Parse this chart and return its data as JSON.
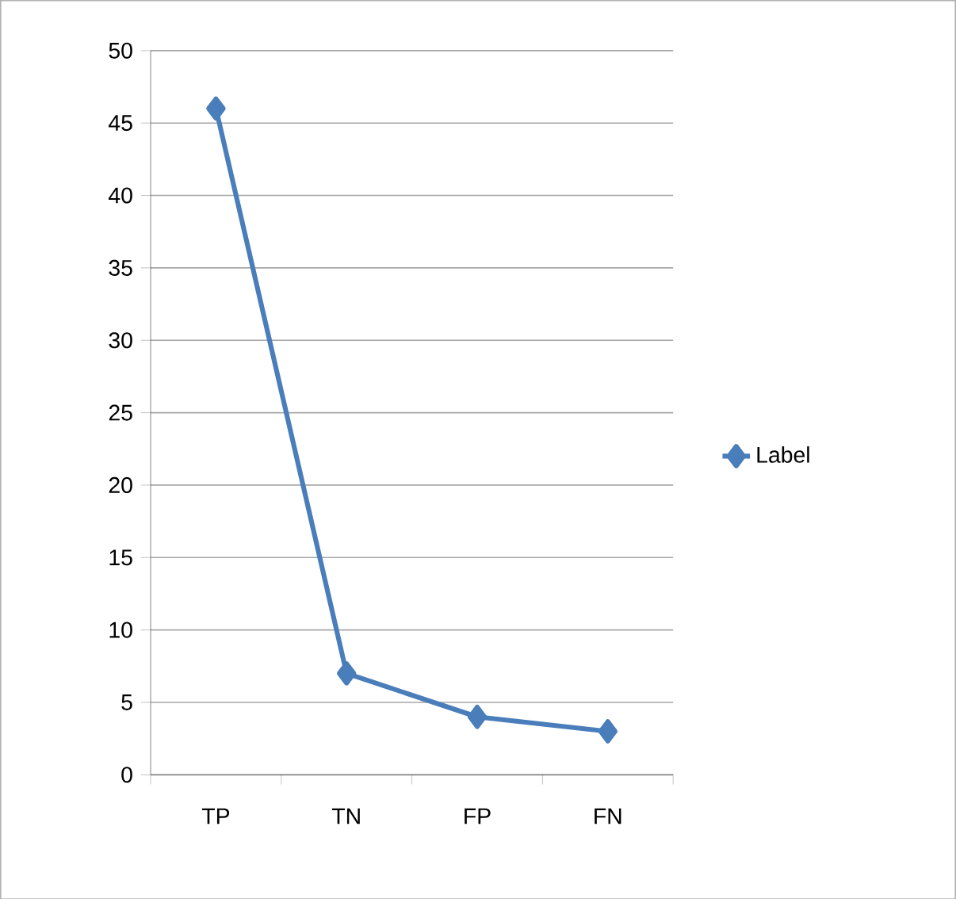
{
  "chart_data": {
    "type": "line",
    "categories": [
      "TP",
      "TN",
      "FP",
      "FN"
    ],
    "series": [
      {
        "name": "Label",
        "color": "#4a7ebb",
        "values": [
          46,
          7,
          4,
          3
        ]
      }
    ],
    "ylim": [
      0,
      50
    ],
    "yticks": [
      0,
      5,
      10,
      15,
      20,
      25,
      30,
      35,
      40,
      45,
      50
    ],
    "grid": "y",
    "legend": "right",
    "marker": "diamond",
    "line_style": "solid"
  }
}
